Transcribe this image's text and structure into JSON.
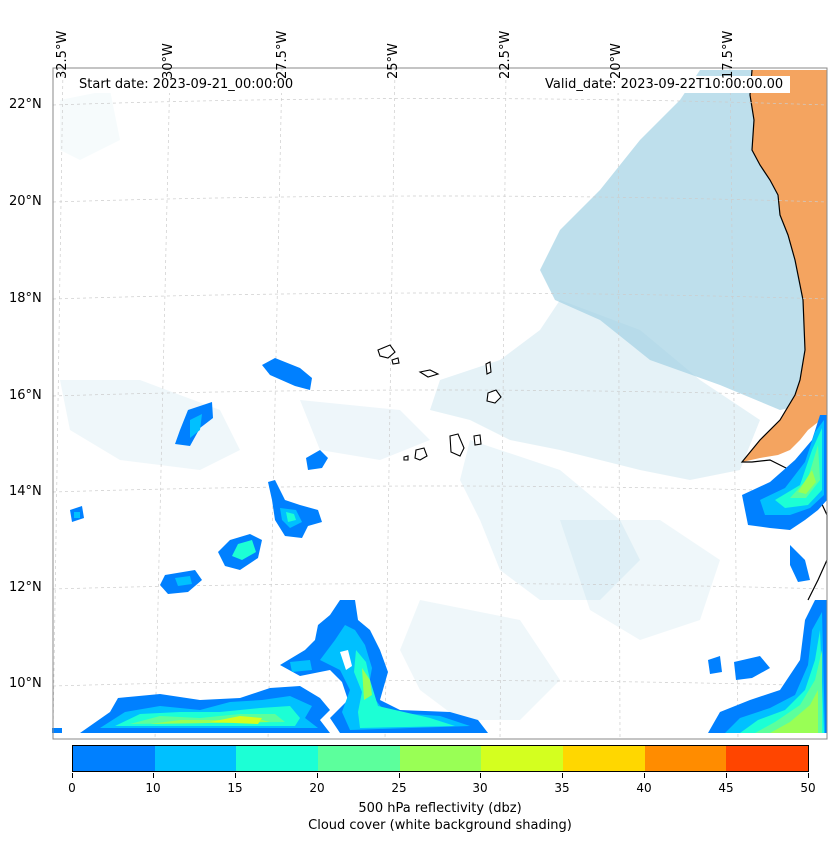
{
  "map": {
    "start_date": "Start date: 2023-09-21_00:00:00",
    "valid_date": "Valid_date: 2023-09-22T10:00:00.00",
    "lat_labels": [
      "22°N",
      "20°N",
      "18°N",
      "16°N",
      "14°N",
      "12°N",
      "10°N"
    ],
    "lon_labels": [
      "32.5°W",
      "30°W",
      "27.5°W",
      "25°W",
      "22.5°W",
      "20°W",
      "17.5°W"
    ],
    "colors": {
      "land": "#f4a460",
      "cloud": "#a8d4e6",
      "coast": "#000000",
      "grid": "#bbbbbb"
    }
  },
  "colorbar": {
    "ticks": [
      "0",
      "10",
      "15",
      "20",
      "25",
      "30",
      "35",
      "40",
      "45",
      "50"
    ],
    "colors": [
      "#0080ff",
      "#00c0ff",
      "#1cffd5",
      "#5cff9c",
      "#99ff55",
      "#d4ff1f",
      "#ffd700",
      "#ff8c00",
      "#ff4500"
    ],
    "label": "500 hPa reflectivity (dbz)",
    "sublabel": "Cloud cover (white background shading)"
  }
}
